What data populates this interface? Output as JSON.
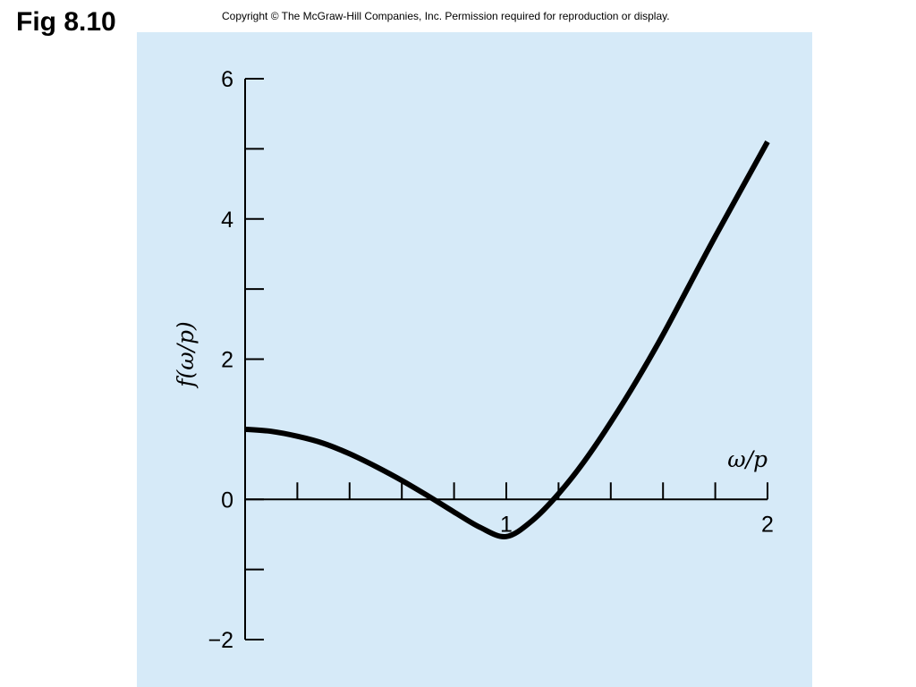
{
  "figure": {
    "title": "Fig 8.10",
    "copyright": "Copyright © The McGraw-Hill Companies, Inc. Permission required for reproduction or display."
  },
  "colors": {
    "panel_background": "#d6eaf8",
    "curve": "#000000",
    "axis": "#000000"
  },
  "chart_data": {
    "type": "line",
    "title": "",
    "xlabel": "ω/p",
    "ylabel": "f(ω/p)",
    "xlim": [
      0,
      2
    ],
    "ylim": [
      -2,
      6
    ],
    "x_ticks": [
      0,
      0.2,
      0.4,
      0.6,
      0.8,
      1.0,
      1.2,
      1.4,
      1.6,
      1.8,
      2.0
    ],
    "x_tick_labels": [
      {
        "value": 1,
        "label": "1"
      },
      {
        "value": 2,
        "label": "2"
      }
    ],
    "y_ticks": [
      -2,
      -1,
      0,
      1,
      2,
      3,
      4,
      5,
      6
    ],
    "y_tick_labels": [
      {
        "value": 6,
        "label": "6"
      },
      {
        "value": 4,
        "label": "4"
      },
      {
        "value": 2,
        "label": "2"
      },
      {
        "value": 0,
        "label": "0"
      },
      {
        "value": -2,
        "label": "−2"
      }
    ],
    "grid": false,
    "series": [
      {
        "x": [
          0,
          0.1,
          0.2,
          0.3,
          0.4,
          0.5,
          0.6,
          0.7,
          0.8,
          0.9,
          1.0,
          1.1,
          1.2,
          1.3,
          1.4,
          1.5,
          1.6,
          1.7,
          1.8,
          2.0
        ],
        "y": [
          1.0,
          0.97,
          0.9,
          0.8,
          0.65,
          0.47,
          0.27,
          0.05,
          -0.18,
          -0.4,
          -0.53,
          -0.3,
          0.08,
          0.55,
          1.1,
          1.7,
          2.35,
          3.05,
          3.75,
          5.1
        ]
      }
    ]
  }
}
